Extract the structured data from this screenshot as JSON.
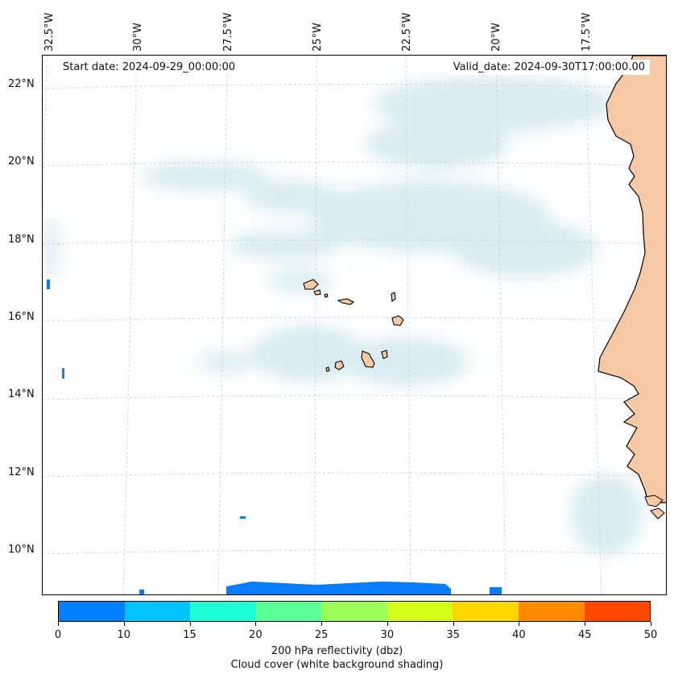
{
  "map": {
    "start_label": "Start date: 2024-09-29_00:00:00",
    "valid_label": "Valid_date: 2024-09-30T17:00:00.00",
    "lon_labels": [
      "32.5°W",
      "30°W",
      "27.5°W",
      "25°W",
      "22.5°W",
      "20°W",
      "17.5°W"
    ],
    "lat_labels": [
      "22°N",
      "20°N",
      "18°N",
      "16°N",
      "14°N",
      "12°N",
      "10°N"
    ],
    "land_color": "#f6c9a4",
    "cloud_color": "#b9dde8",
    "reflectivity_color": "#0a7cff",
    "gridline_color": "#c8c8c8"
  },
  "colorbar": {
    "ticks": [
      "0",
      "10",
      "15",
      "20",
      "25",
      "30",
      "35",
      "40",
      "45",
      "50"
    ],
    "colors": [
      "#0080ff",
      "#00c3ff",
      "#1effd8",
      "#5cff95",
      "#9bff57",
      "#d6ff1c",
      "#ffd700",
      "#ff8c00",
      "#ff4800"
    ],
    "label": "200 hPa reflectivity (dbz)",
    "sublabel": "Cloud cover (white background shading)"
  }
}
